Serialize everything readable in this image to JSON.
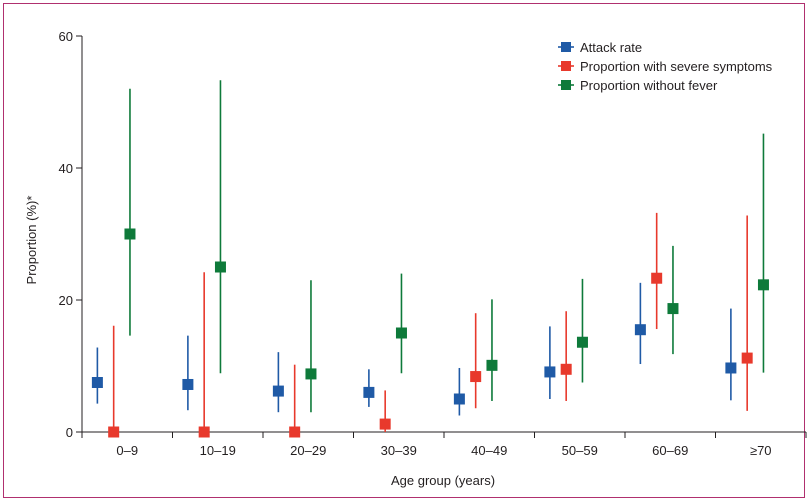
{
  "chart_data": {
    "type": "scatter",
    "xlabel": "Age group (years)",
    "ylabel": "Proportion (%)*",
    "ylim": [
      0,
      60
    ],
    "yticks": [
      0,
      20,
      40,
      60
    ],
    "categories": [
      "0–9",
      "10–19",
      "20–29",
      "30–39",
      "40–49",
      "50–59",
      "60–69",
      "≥70"
    ],
    "series": [
      {
        "name": "Attack rate",
        "color": "#1f5aa6",
        "values": [
          7.5,
          7.2,
          6.2,
          6.0,
          5.0,
          9.1,
          15.5,
          9.7
        ],
        "lower": [
          4.3,
          3.3,
          3.0,
          3.8,
          2.5,
          5.0,
          10.3,
          4.8
        ],
        "upper": [
          12.8,
          14.6,
          12.1,
          9.5,
          9.7,
          16.0,
          22.6,
          18.7
        ]
      },
      {
        "name": "Proportion with severe symptoms",
        "color": "#e8392c",
        "values": [
          0,
          0,
          0,
          1.2,
          8.4,
          9.5,
          23.3,
          11.2
        ],
        "lower": [
          0,
          0,
          0,
          0,
          3.6,
          4.7,
          15.6,
          3.2
        ],
        "upper": [
          16.1,
          24.2,
          10.2,
          6.3,
          18.0,
          18.3,
          33.2,
          32.8
        ]
      },
      {
        "name": "Proportion without fever",
        "color": "#0e7a3a",
        "values": [
          30.0,
          25.0,
          8.8,
          15.0,
          10.1,
          13.6,
          18.7,
          22.3
        ],
        "lower": [
          14.6,
          8.9,
          3.0,
          8.9,
          4.7,
          7.5,
          11.8,
          9.0
        ],
        "upper": [
          52.0,
          53.3,
          23.0,
          24.0,
          20.1,
          23.2,
          28.2,
          45.2
        ]
      }
    ],
    "legend_position": "top-right"
  }
}
